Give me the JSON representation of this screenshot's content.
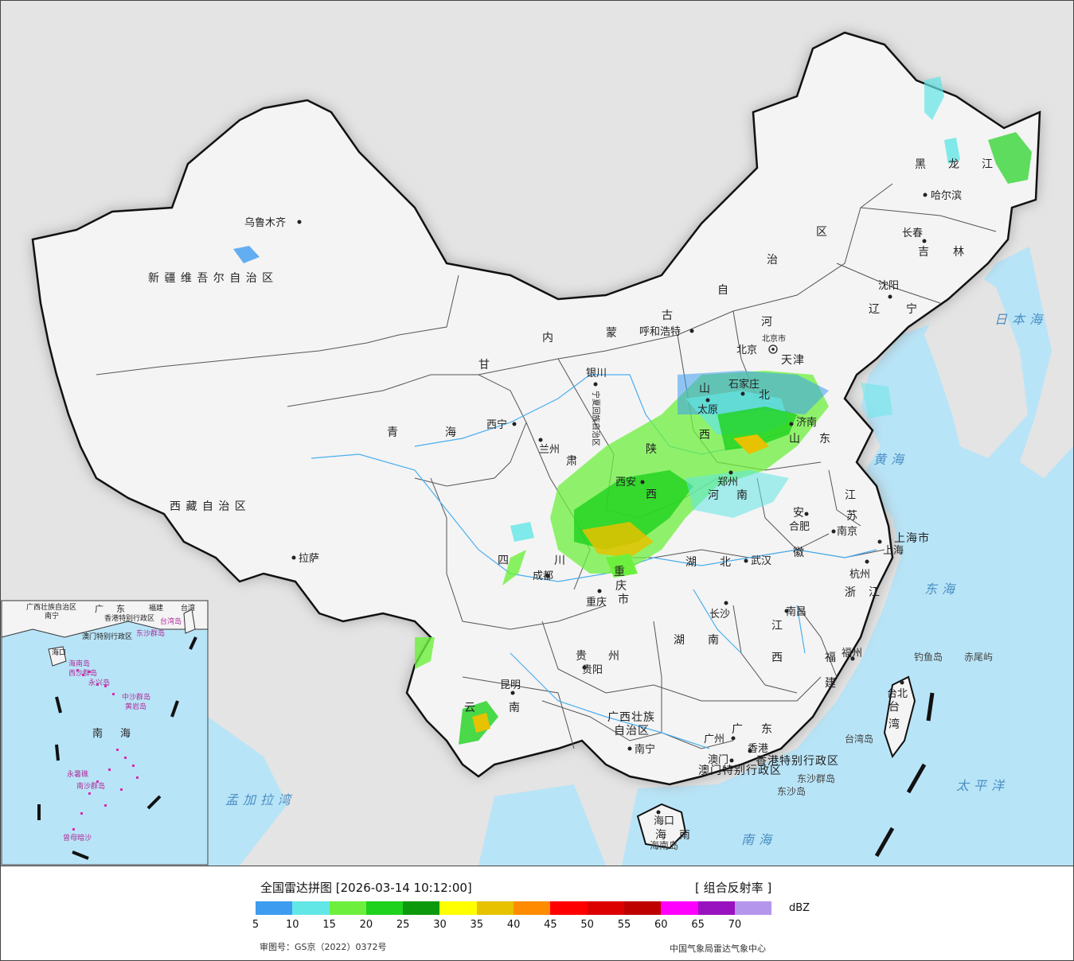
{
  "legend": {
    "title": "全国雷达拼图 [2026-03-14 10:12:00]",
    "product": "[ 组合反射率 ]",
    "unit": "dBZ",
    "ticks": [
      "5",
      "10",
      "15",
      "20",
      "25",
      "30",
      "35",
      "40",
      "45",
      "50",
      "55",
      "60",
      "65",
      "70"
    ],
    "colors": [
      "#3d9cf0",
      "#63e6e6",
      "#6df03d",
      "#1ed21e",
      "#0c9a0c",
      "#ffff00",
      "#e6c200",
      "#ff8c00",
      "#ff0000",
      "#dc0000",
      "#bf0000",
      "#ff00ff",
      "#9912bf",
      "#b497ed"
    ],
    "approval": "审图号：GS京（2022）0372号",
    "credit": "中国气象局雷达气象中心"
  },
  "map": {
    "provinces": [
      {
        "name": "新 疆 维 吾 尔 自 治 区"
      },
      {
        "name": "西 藏 自 治 区"
      },
      {
        "name": "青"
      },
      {
        "name": "海"
      },
      {
        "name": "甘"
      },
      {
        "name": "肃"
      },
      {
        "name": "内"
      },
      {
        "name": "蒙"
      },
      {
        "name": "古"
      },
      {
        "name": "自"
      },
      {
        "name": "治"
      },
      {
        "name": "区"
      },
      {
        "name": "黑"
      },
      {
        "name": "龙"
      },
      {
        "name": "江"
      },
      {
        "name": "吉"
      },
      {
        "name": "林"
      },
      {
        "name": "辽"
      },
      {
        "name": "宁"
      },
      {
        "name": "河"
      },
      {
        "name": "北"
      },
      {
        "name": "山"
      },
      {
        "name": "西"
      },
      {
        "name": "陕"
      },
      {
        "name": "西"
      },
      {
        "name": "山"
      },
      {
        "name": "东"
      },
      {
        "name": "河"
      },
      {
        "name": "南"
      },
      {
        "name": "江"
      },
      {
        "name": "苏"
      },
      {
        "name": "安"
      },
      {
        "name": "徽"
      },
      {
        "name": "湖"
      },
      {
        "name": "北"
      },
      {
        "name": "四"
      },
      {
        "name": "川"
      },
      {
        "name": "重"
      },
      {
        "name": "庆"
      },
      {
        "name": "市"
      },
      {
        "name": "贵"
      },
      {
        "name": "州"
      },
      {
        "name": "云"
      },
      {
        "name": "南"
      },
      {
        "name": "湖"
      },
      {
        "name": "南"
      },
      {
        "name": "江"
      },
      {
        "name": "西"
      },
      {
        "name": "浙"
      },
      {
        "name": "江"
      },
      {
        "name": "福"
      },
      {
        "name": "建"
      },
      {
        "name": "广"
      },
      {
        "name": "东"
      },
      {
        "name": "广西壮族"
      },
      {
        "name": "自治区"
      },
      {
        "name": "海"
      },
      {
        "name": "南"
      },
      {
        "name": "上海市"
      },
      {
        "name": "台"
      },
      {
        "name": "湾"
      },
      {
        "name": "宁夏回族自治区"
      },
      {
        "name": "北京市"
      },
      {
        "name": "天津"
      },
      {
        "name": "香港特别行政区"
      },
      {
        "name": "澳门特别行政区"
      }
    ],
    "cities": [
      {
        "name": "乌鲁木齐"
      },
      {
        "name": "拉萨"
      },
      {
        "name": "西宁"
      },
      {
        "name": "兰州"
      },
      {
        "name": "银川"
      },
      {
        "name": "呼和浩特"
      },
      {
        "name": "哈尔滨"
      },
      {
        "name": "长春"
      },
      {
        "name": "沈阳"
      },
      {
        "name": "北京"
      },
      {
        "name": "石家庄"
      },
      {
        "name": "太原"
      },
      {
        "name": "济南"
      },
      {
        "name": "西安"
      },
      {
        "name": "郑州"
      },
      {
        "name": "合肥"
      },
      {
        "name": "南京"
      },
      {
        "name": "上海"
      },
      {
        "name": "杭州"
      },
      {
        "name": "武汉"
      },
      {
        "name": "成都"
      },
      {
        "name": "重庆"
      },
      {
        "name": "贵阳"
      },
      {
        "name": "昆明"
      },
      {
        "name": "长沙"
      },
      {
        "name": "南昌"
      },
      {
        "name": "福州"
      },
      {
        "name": "台北"
      },
      {
        "name": "广州"
      },
      {
        "name": "香港"
      },
      {
        "name": "澳门"
      },
      {
        "name": "南宁"
      },
      {
        "name": "海口"
      }
    ],
    "seas": [
      {
        "name": "日本海"
      },
      {
        "name": "黄海"
      },
      {
        "name": "东海"
      },
      {
        "name": "太平洋"
      },
      {
        "name": "南海"
      },
      {
        "name": "孟加拉湾"
      }
    ],
    "islands": [
      {
        "name": "钓鱼岛"
      },
      {
        "name": "赤尾屿"
      },
      {
        "name": "台湾岛"
      },
      {
        "name": "东沙群岛"
      },
      {
        "name": "东沙岛"
      },
      {
        "name": "海南岛"
      }
    ],
    "inset": {
      "labels": [
        {
          "name": "广西壮族自治区"
        },
        {
          "name": "广"
        },
        {
          "name": "东"
        },
        {
          "name": "福建"
        },
        {
          "name": "台湾"
        },
        {
          "name": "南宁"
        },
        {
          "name": "香港特别行政区"
        },
        {
          "name": "澳门特别行政区"
        },
        {
          "name": "台湾岛"
        },
        {
          "name": "东沙群岛"
        },
        {
          "name": "海口"
        },
        {
          "name": "海南岛"
        },
        {
          "name": "西沙群岛"
        },
        {
          "name": "永兴岛"
        },
        {
          "name": "中沙群岛"
        },
        {
          "name": "黄岩岛"
        },
        {
          "name": "南"
        },
        {
          "name": "海"
        },
        {
          "name": "永暑礁"
        },
        {
          "name": "南沙群岛"
        },
        {
          "name": "曾母暗沙"
        }
      ]
    }
  }
}
